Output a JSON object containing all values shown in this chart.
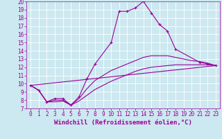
{
  "xlabel": "Windchill (Refroidissement éolien,°C)",
  "bg_color": "#cce8f0",
  "line_color": "#990099",
  "xlim": [
    -0.5,
    23.5
  ],
  "ylim": [
    7,
    20
  ],
  "xticks": [
    0,
    1,
    2,
    3,
    4,
    5,
    6,
    7,
    8,
    9,
    10,
    11,
    12,
    13,
    14,
    15,
    16,
    17,
    18,
    19,
    20,
    21,
    22,
    23
  ],
  "yticks": [
    7,
    8,
    9,
    10,
    11,
    12,
    13,
    14,
    15,
    16,
    17,
    18,
    19,
    20
  ],
  "lines": [
    {
      "x": [
        0,
        1,
        2,
        3,
        4,
        5,
        6,
        7,
        8,
        10,
        11,
        12,
        13,
        14,
        15,
        16,
        17,
        18,
        21,
        22,
        23
      ],
      "y": [
        9.8,
        9.2,
        7.8,
        8.2,
        8.2,
        7.4,
        8.4,
        10.6,
        12.4,
        15.0,
        18.8,
        18.8,
        19.2,
        20.0,
        18.6,
        17.2,
        16.4,
        14.2,
        12.6,
        12.4,
        12.2
      ],
      "marker": "+"
    },
    {
      "x": [
        0,
        23
      ],
      "y": [
        9.8,
        12.2
      ],
      "marker": null
    },
    {
      "x": [
        0,
        1,
        2,
        3,
        4,
        5,
        6,
        7,
        8,
        9,
        10,
        11,
        12,
        13,
        14,
        15,
        16,
        17,
        18,
        19,
        20,
        21,
        22,
        23
      ],
      "y": [
        9.8,
        9.2,
        7.8,
        7.8,
        7.9,
        7.4,
        7.9,
        8.6,
        9.3,
        9.8,
        10.3,
        10.7,
        11.1,
        11.5,
        11.8,
        12.0,
        12.1,
        12.2,
        12.3,
        12.3,
        12.3,
        12.3,
        12.3,
        12.2
      ],
      "marker": null
    },
    {
      "x": [
        0,
        1,
        2,
        3,
        4,
        5,
        6,
        7,
        8,
        9,
        10,
        11,
        12,
        13,
        14,
        15,
        16,
        17,
        18,
        19,
        20,
        21,
        22,
        23
      ],
      "y": [
        9.8,
        9.2,
        7.8,
        8.0,
        8.0,
        7.4,
        8.2,
        9.4,
        10.4,
        11.0,
        11.6,
        12.0,
        12.4,
        12.8,
        13.2,
        13.4,
        13.4,
        13.4,
        13.2,
        13.0,
        12.8,
        12.7,
        12.5,
        12.2
      ],
      "marker": null
    }
  ],
  "grid_color": "#ffffff",
  "tick_label_fontsize": 5.5,
  "xlabel_fontsize": 6.5,
  "xlabel_fontweight": "bold"
}
